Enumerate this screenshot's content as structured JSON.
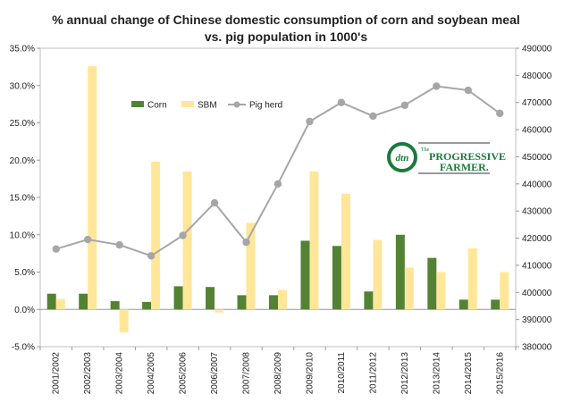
{
  "chart_data": {
    "type": "bar",
    "title_lines": [
      "%  annual change of Chinese domestic consumption of corn and soybean meal",
      "vs. pig population in 1000's"
    ],
    "categories": [
      "2001/2002",
      "2002/2003",
      "2003/2004",
      "2004/2005",
      "2005/2006",
      "2006/2007",
      "2007/2008",
      "2008/2009",
      "2009/2010",
      "2010/2011",
      "2011/2012",
      "2012/2013",
      "2013/2014",
      "2014/2015",
      "2015/2016"
    ],
    "series": [
      {
        "name": "Corn",
        "type": "bar",
        "axis": "left",
        "color": "#548235",
        "values": [
          2.1,
          2.1,
          1.1,
          1.0,
          3.1,
          3.0,
          1.9,
          1.9,
          9.2,
          8.5,
          2.4,
          10.0,
          6.9,
          1.3,
          1.3
        ]
      },
      {
        "name": "SBM",
        "type": "bar",
        "axis": "left",
        "color": "#FFE699",
        "values": [
          1.4,
          32.6,
          -3.1,
          19.8,
          18.5,
          -0.4,
          11.6,
          2.6,
          18.5,
          15.5,
          9.3,
          5.6,
          5.0,
          8.2,
          5.0
        ]
      },
      {
        "name": "Pig herd",
        "type": "line",
        "axis": "right",
        "color": "#A6A6A6",
        "values": [
          416000,
          419500,
          417500,
          413500,
          421000,
          433000,
          418500,
          440000,
          463000,
          470000,
          465000,
          469000,
          476000,
          474500,
          466000
        ]
      }
    ],
    "y_left": {
      "min": -5,
      "max": 35,
      "step": 5,
      "tick_labels": [
        "-5.0%",
        "0.0%",
        "5.0%",
        "10.0%",
        "15.0%",
        "20.0%",
        "25.0%",
        "30.0%",
        "35.0%"
      ]
    },
    "y_right": {
      "min": 380000,
      "max": 490000,
      "step": 10000,
      "tick_labels": [
        "380000",
        "390000",
        "400000",
        "410000",
        "420000",
        "430000",
        "440000",
        "450000",
        "460000",
        "470000",
        "480000",
        "490000"
      ]
    },
    "grid": false,
    "legend": {
      "position": "top-left",
      "labels": [
        "Corn",
        "SBM",
        "Pig herd"
      ]
    }
  },
  "logo": {
    "mark": "dtn",
    "top_word": "The",
    "brand_line1": "PROGRESSIVE",
    "brand_line2": "FARMER."
  }
}
